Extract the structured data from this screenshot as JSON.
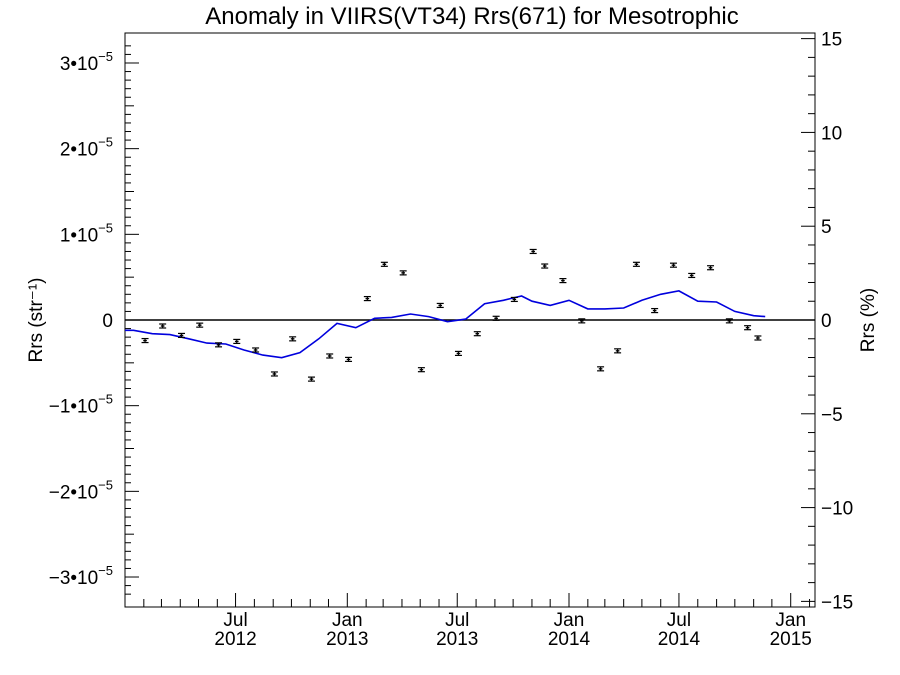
{
  "chart_data": {
    "type": "scatter",
    "title": "Anomaly in VIIRS(VT34) Rrs(671) for Mesotrophic",
    "xlabel": "",
    "ylabel_left": "Rrs (str⁻¹)",
    "ylabel_right": "Rrs (%)",
    "xlim": [
      "2012-01-01",
      "2015-02-10"
    ],
    "ylim_left": [
      -3.35e-05,
      3.35e-05
    ],
    "ylim_right": [
      -15.3,
      15.3
    ],
    "grid": false,
    "x_ticks": [
      {
        "month": "Jul",
        "year": "2012",
        "date": "2012-07-01"
      },
      {
        "month": "Jan",
        "year": "2013",
        "date": "2013-01-01"
      },
      {
        "month": "Jul",
        "year": "2013",
        "date": "2013-07-01"
      },
      {
        "month": "Jan",
        "year": "2014",
        "date": "2014-01-01"
      },
      {
        "month": "Jul",
        "year": "2014",
        "date": "2014-07-01"
      },
      {
        "month": "Jan",
        "year": "2015",
        "date": "2015-01-01"
      }
    ],
    "y_ticks_left": [
      {
        "value": 3e-05,
        "mantissa": "3•10",
        "exp": "−5"
      },
      {
        "value": 2e-05,
        "mantissa": "2•10",
        "exp": "−5"
      },
      {
        "value": 1e-05,
        "mantissa": "1•10",
        "exp": "−5"
      },
      {
        "value": 0,
        "mantissa": "0",
        "exp": ""
      },
      {
        "value": -1e-05,
        "mantissa": "−1•10",
        "exp": "−5"
      },
      {
        "value": -2e-05,
        "mantissa": "−2•10",
        "exp": "−5"
      },
      {
        "value": -3e-05,
        "mantissa": "−3•10",
        "exp": "−5"
      }
    ],
    "y_ticks_right": [
      {
        "value": 15,
        "label": "15"
      },
      {
        "value": 10,
        "label": "10"
      },
      {
        "value": 5,
        "label": "5"
      },
      {
        "value": 0,
        "label": "0"
      },
      {
        "value": -5,
        "label": "−5"
      },
      {
        "value": -10,
        "label": "−10"
      },
      {
        "value": -15,
        "label": "−15"
      }
    ],
    "colors": {
      "points": "#000000",
      "line": "#0000dd",
      "zero_line": "#000000",
      "axes": "#000000"
    },
    "series": [
      {
        "type": "scatter_errorbar",
        "points": [
          {
            "x": "2012-02-03",
            "y": -2.4e-06
          },
          {
            "x": "2012-03-03",
            "y": -7e-07
          },
          {
            "x": "2012-04-03",
            "y": -1.8e-06
          },
          {
            "x": "2012-05-03",
            "y": -6e-07
          },
          {
            "x": "2012-06-03",
            "y": -2.9e-06
          },
          {
            "x": "2012-07-03",
            "y": -2.5e-06
          },
          {
            "x": "2012-08-03",
            "y": -3.5e-06
          },
          {
            "x": "2012-09-03",
            "y": -6.3e-06
          },
          {
            "x": "2012-10-03",
            "y": -2.2e-06
          },
          {
            "x": "2012-11-03",
            "y": -6.9e-06
          },
          {
            "x": "2012-12-03",
            "y": -4.2e-06
          },
          {
            "x": "2013-01-03",
            "y": -4.6e-06
          },
          {
            "x": "2013-02-03",
            "y": 2.5e-06
          },
          {
            "x": "2013-03-03",
            "y": 6.5e-06
          },
          {
            "x": "2013-04-03",
            "y": 5.5e-06
          },
          {
            "x": "2013-05-03",
            "y": -5.8e-06
          },
          {
            "x": "2013-06-03",
            "y": 1.7e-06
          },
          {
            "x": "2013-07-03",
            "y": -3.9e-06
          },
          {
            "x": "2013-08-03",
            "y": -1.6e-06
          },
          {
            "x": "2013-09-03",
            "y": 2e-07
          },
          {
            "x": "2013-10-03",
            "y": 2.4e-06
          },
          {
            "x": "2013-11-03",
            "y": 8e-06
          },
          {
            "x": "2013-11-22",
            "y": 6.3e-06
          },
          {
            "x": "2013-12-22",
            "y": 4.6e-06
          },
          {
            "x": "2014-01-22",
            "y": -1e-07
          },
          {
            "x": "2014-02-22",
            "y": -5.7e-06
          },
          {
            "x": "2014-03-22",
            "y": -3.6e-06
          },
          {
            "x": "2014-04-22",
            "y": 6.5e-06
          },
          {
            "x": "2014-05-22",
            "y": 1.1e-06
          },
          {
            "x": "2014-06-22",
            "y": 6.4e-06
          },
          {
            "x": "2014-07-22",
            "y": 5.2e-06
          },
          {
            "x": "2014-08-22",
            "y": 6.1e-06
          },
          {
            "x": "2014-09-22",
            "y": -1e-07
          },
          {
            "x": "2014-10-22",
            "y": -9e-07
          },
          {
            "x": "2014-11-08",
            "y": -2.1e-06
          }
        ]
      },
      {
        "type": "line",
        "points": [
          {
            "x": "2012-01-01",
            "y": -1.2e-06
          },
          {
            "x": "2012-01-15",
            "y": -1.2e-06
          },
          {
            "x": "2012-02-15",
            "y": -1.6e-06
          },
          {
            "x": "2012-03-15",
            "y": -1.7e-06
          },
          {
            "x": "2012-04-15",
            "y": -2.2e-06
          },
          {
            "x": "2012-05-15",
            "y": -2.7e-06
          },
          {
            "x": "2012-06-15",
            "y": -2.8e-06
          },
          {
            "x": "2012-07-15",
            "y": -3.5e-06
          },
          {
            "x": "2012-08-15",
            "y": -4.1e-06
          },
          {
            "x": "2012-09-15",
            "y": -4.4e-06
          },
          {
            "x": "2012-10-15",
            "y": -3.8e-06
          },
          {
            "x": "2012-11-15",
            "y": -2.2e-06
          },
          {
            "x": "2012-12-15",
            "y": -4e-07
          },
          {
            "x": "2013-01-15",
            "y": -9e-07
          },
          {
            "x": "2013-02-15",
            "y": 2e-07
          },
          {
            "x": "2013-03-15",
            "y": 3e-07
          },
          {
            "x": "2013-04-15",
            "y": 7e-07
          },
          {
            "x": "2013-05-15",
            "y": 4e-07
          },
          {
            "x": "2013-06-15",
            "y": -2e-07
          },
          {
            "x": "2013-07-15",
            "y": 1e-07
          },
          {
            "x": "2013-08-15",
            "y": 1.9e-06
          },
          {
            "x": "2013-09-15",
            "y": 2.3e-06
          },
          {
            "x": "2013-10-15",
            "y": 2.8e-06
          },
          {
            "x": "2013-11-01",
            "y": 2.2e-06
          },
          {
            "x": "2013-12-01",
            "y": 1.7e-06
          },
          {
            "x": "2014-01-01",
            "y": 2.3e-06
          },
          {
            "x": "2014-02-01",
            "y": 1.3e-06
          },
          {
            "x": "2014-03-01",
            "y": 1.3e-06
          },
          {
            "x": "2014-04-01",
            "y": 1.4e-06
          },
          {
            "x": "2014-05-01",
            "y": 2.3e-06
          },
          {
            "x": "2014-06-01",
            "y": 3e-06
          },
          {
            "x": "2014-07-01",
            "y": 3.4e-06
          },
          {
            "x": "2014-08-01",
            "y": 2.2e-06
          },
          {
            "x": "2014-09-01",
            "y": 2.1e-06
          },
          {
            "x": "2014-10-01",
            "y": 1e-06
          },
          {
            "x": "2014-11-01",
            "y": 5e-07
          },
          {
            "x": "2014-11-20",
            "y": 4e-07
          }
        ]
      }
    ]
  }
}
